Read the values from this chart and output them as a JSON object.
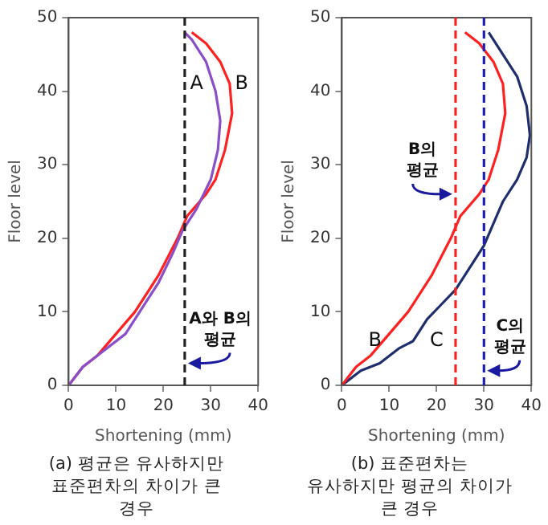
{
  "chart_data": [
    {
      "type": "line",
      "xlabel": "Shortening (mm)",
      "ylabel": "Floor level",
      "xlim": [
        0,
        40
      ],
      "ylim": [
        0,
        50
      ],
      "xticks": [
        0,
        10,
        20,
        30,
        40
      ],
      "yticks": [
        0,
        10,
        20,
        30,
        40,
        50
      ],
      "grid": false,
      "line_style": "solid",
      "series": [
        {
          "name": "A",
          "color": "#8a4fc8",
          "x": [
            0,
            3,
            7,
            12,
            15,
            19,
            22,
            24,
            27,
            30,
            31.5,
            32,
            31,
            29,
            26,
            24.5
          ],
          "values": [
            0,
            2.5,
            4.5,
            7,
            10,
            14,
            18,
            21,
            24,
            28,
            32,
            36,
            40,
            44,
            47,
            48
          ]
        },
        {
          "name": "B",
          "color": "#ff2020",
          "x": [
            0,
            3,
            6,
            10,
            14,
            19,
            23,
            25,
            29,
            31,
            33,
            34.5,
            34,
            32,
            29,
            26
          ],
          "values": [
            0,
            2.5,
            4,
            7,
            10,
            15,
            20,
            23,
            26,
            28,
            32,
            37,
            41,
            44,
            46.5,
            48
          ]
        }
      ],
      "ref_lines": [
        {
          "axis": "x",
          "value": 24.5,
          "label": "A와 B의 평균",
          "color": "#222222",
          "line_style": "dashed"
        }
      ],
      "annotations": [
        "(a) 평균은 유사하지만 표준편차의 차이가 큰 경우"
      ]
    },
    {
      "type": "line",
      "xlabel": "Shortening (mm)",
      "ylabel": "Floor level",
      "xlim": [
        0,
        40
      ],
      "ylim": [
        0,
        50
      ],
      "xticks": [
        0,
        10,
        20,
        30,
        40
      ],
      "yticks": [
        0,
        10,
        20,
        30,
        40,
        50
      ],
      "grid": false,
      "line_style": "solid",
      "series": [
        {
          "name": "B",
          "color": "#ff2020",
          "x": [
            0,
            3,
            6,
            10,
            14,
            19,
            23,
            25,
            29,
            31,
            33,
            34.5,
            34,
            32,
            29,
            26
          ],
          "values": [
            0,
            2.5,
            4,
            7,
            10,
            15,
            20,
            23,
            26,
            28,
            32,
            37,
            41,
            44,
            46.5,
            48
          ]
        },
        {
          "name": "C",
          "color": "#1f2f6e",
          "x": [
            0,
            4,
            8,
            12,
            15,
            18,
            21,
            24,
            27,
            30,
            32,
            34,
            37,
            39,
            39.7,
            39,
            37,
            34,
            31
          ],
          "values": [
            0,
            2,
            3,
            5,
            6,
            9,
            11,
            13,
            16,
            19,
            22,
            25,
            28,
            31,
            34,
            38,
            42,
            45,
            48
          ]
        }
      ],
      "ref_lines": [
        {
          "axis": "x",
          "value": 24,
          "label": "B의 평균",
          "color": "#ff2020",
          "line_style": "dashed"
        },
        {
          "axis": "x",
          "value": 30,
          "label": "C의 평균",
          "color": "#2020b0",
          "line_style": "dashed"
        }
      ],
      "annotations": [
        "(b) 표준편차는 유사하지만 평균의 차이가 큰 경우"
      ]
    }
  ]
}
